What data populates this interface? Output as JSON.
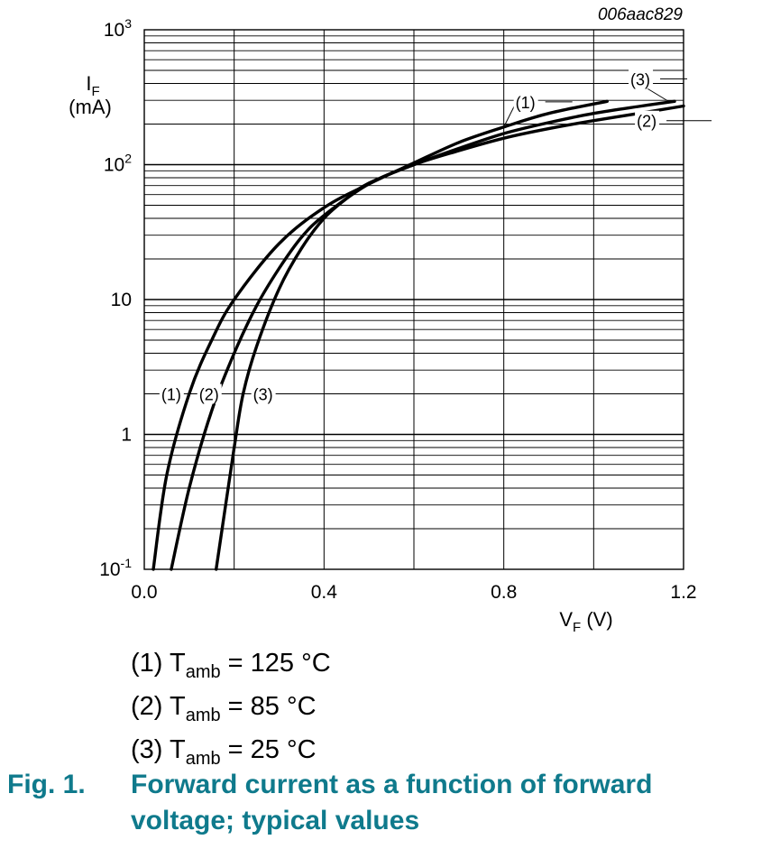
{
  "chart_data": {
    "type": "line",
    "code": "006aac829",
    "xlabel": {
      "main": "V",
      "sub": "F",
      "unit": " (V)"
    },
    "ylabel": {
      "main": "I",
      "sub": "F",
      "unit": "(mA)"
    },
    "xlim": [
      0,
      1.2
    ],
    "ylim": [
      0.1,
      1000
    ],
    "yscale": "log",
    "grid": true,
    "x_ticks": [
      {
        "value": 0.0,
        "label": "0.0"
      },
      {
        "value": 0.4,
        "label": "0.4"
      },
      {
        "value": 0.8,
        "label": "0.8"
      },
      {
        "value": 1.2,
        "label": "1.2"
      }
    ],
    "y_ticks": [
      {
        "value": 1000,
        "base": "10",
        "exp": "3"
      },
      {
        "value": 100,
        "base": "10",
        "exp": "2"
      },
      {
        "value": 10,
        "base": "10",
        "exp": ""
      },
      {
        "value": 1,
        "base": "1",
        "exp": ""
      },
      {
        "value": 0.1,
        "base": "10",
        "exp": "-1"
      }
    ],
    "series": [
      {
        "name": "(1)",
        "x": [
          0.02,
          0.05,
          0.1,
          0.15,
          0.2,
          0.3,
          0.4,
          0.5,
          0.6,
          0.7,
          0.8,
          0.9,
          1.03
        ],
        "y": [
          0.1,
          0.5,
          2.0,
          5.0,
          10.0,
          26.0,
          48.0,
          72.0,
          103.0,
          146.0,
          190.0,
          240.0,
          295.0
        ]
      },
      {
        "name": "(2)",
        "x": [
          0.06,
          0.1,
          0.15,
          0.2,
          0.25,
          0.3,
          0.35,
          0.4,
          0.5,
          0.6,
          0.7,
          0.8,
          0.9,
          1.0,
          1.1,
          1.2
        ],
        "y": [
          0.1,
          0.4,
          1.5,
          4.0,
          9.0,
          17.0,
          29.0,
          42.0,
          72.0,
          100.0,
          127.0,
          157.0,
          185.0,
          212.0,
          240.0,
          272.0
        ]
      },
      {
        "name": "(3)",
        "x": [
          0.16,
          0.2,
          0.22,
          0.25,
          0.3,
          0.35,
          0.4,
          0.45,
          0.5,
          0.6,
          0.7,
          0.8,
          0.9,
          1.0,
          1.1,
          1.18
        ],
        "y": [
          0.1,
          0.8,
          2.0,
          4.5,
          12.0,
          24.0,
          40.0,
          56.0,
          73.0,
          100.0,
          132.0,
          170.0,
          205.0,
          240.0,
          270.0,
          295.0
        ]
      }
    ],
    "annotations": [
      {
        "text": "(1)",
        "series": "(1)",
        "x": 0.8,
        "y": 190
      },
      {
        "text": "(2)",
        "series": "(2)",
        "x": 1.15,
        "y": 255
      },
      {
        "text": "(3)",
        "series": "(3)",
        "x": 1.17,
        "y": 290
      },
      {
        "text": "(1)",
        "series": "(1)",
        "x": 0.1,
        "y": 2.0
      },
      {
        "text": "(2)",
        "series": "(2)",
        "x": 0.15,
        "y": 2.0
      },
      {
        "text": "(3)",
        "series": "(3)",
        "x": 0.22,
        "y": 2.0
      }
    ]
  },
  "legend": [
    {
      "prefix": "(1) T",
      "sub": "amb",
      "suffix": " = 125 °C"
    },
    {
      "prefix": "(2) T",
      "sub": "amb",
      "suffix": " = 85 °C"
    },
    {
      "prefix": "(3) T",
      "sub": "amb",
      "suffix": " = 25 °C"
    }
  ],
  "caption": {
    "number": "Fig. 1.",
    "text": "Forward current as a function of forward voltage; typical values",
    "color": "#0f7a8c"
  }
}
